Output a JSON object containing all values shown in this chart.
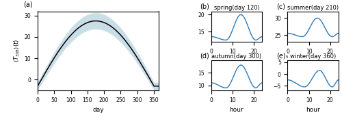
{
  "panel_a": {
    "label": "(a)",
    "ylabel": "$\\langle T_{308}\\rangle(t)$",
    "xlabel": "day",
    "xlim": [
      0,
      365
    ],
    "ylim": [
      -5,
      32
    ],
    "yticks": [
      0,
      10,
      20,
      30
    ],
    "xticks": [
      0,
      50,
      100,
      150,
      200,
      250,
      300,
      350
    ],
    "line_color": "black",
    "fill_color": "#a8c8d8",
    "fill_alpha": 0.5
  },
  "panel_b": {
    "label": "(b)",
    "title": "spring(day 120)",
    "ylim": [
      12,
      21
    ],
    "yticks": [
      15,
      20
    ]
  },
  "panel_c": {
    "label": "(c)",
    "title": "summer(day 210)",
    "ylim": [
      23,
      32
    ],
    "yticks": [
      25,
      30
    ]
  },
  "panel_d": {
    "label": "(d)",
    "title": "autumn(day 300)",
    "ylim": [
      8,
      20
    ],
    "yticks": [
      10,
      15
    ]
  },
  "panel_e": {
    "label": "(e)",
    "title": "winter(day 360)",
    "ylim": [
      -7,
      6
    ],
    "yticks": [
      -5,
      0,
      5
    ]
  },
  "line_color": "#2b7bba",
  "fill_color": "#a8c8d8",
  "fig_width": 5.0,
  "fig_height": 1.65,
  "dpi": 100
}
